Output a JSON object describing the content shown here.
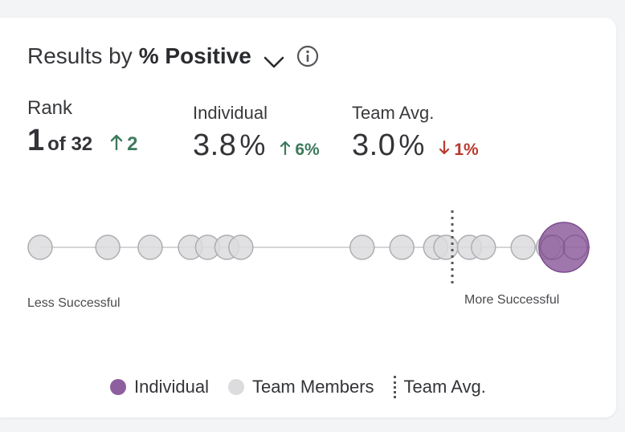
{
  "header": {
    "prefix": "Results by",
    "metric": "% Positive",
    "icons": [
      "chevron-down-icon",
      "info-icon"
    ]
  },
  "rank": {
    "label": "Rank",
    "position": "1",
    "of_text": "of 32",
    "change": "2",
    "direction": "up"
  },
  "individual": {
    "label": "Individual",
    "value": "3.8",
    "unit": "%",
    "change": "6%",
    "direction": "up"
  },
  "team_avg": {
    "label": "Team Avg.",
    "value": "3.0",
    "unit": "%",
    "change": "1%",
    "direction": "down"
  },
  "scale": {
    "left_label": "Less Successful",
    "right_label": "More Successful"
  },
  "legend": {
    "individual": "Individual",
    "team_members": "Team Members",
    "team_avg": "Team Avg."
  },
  "colors": {
    "individual": "#8e5f9e",
    "team_member_fill": "#dcdcde",
    "team_member_stroke": "#aeaeb2",
    "up": "#3d7a5c",
    "down": "#b83a2e"
  },
  "chart_data": {
    "type": "scatter",
    "team_member_positions": [
      0.0,
      0.126,
      0.205,
      0.28,
      0.312,
      0.348,
      0.374,
      0.6,
      0.674,
      0.737,
      0.756,
      0.8,
      0.826,
      0.9,
      0.947
    ],
    "team_avg_position": 0.768,
    "individual_position": 1.0
  }
}
